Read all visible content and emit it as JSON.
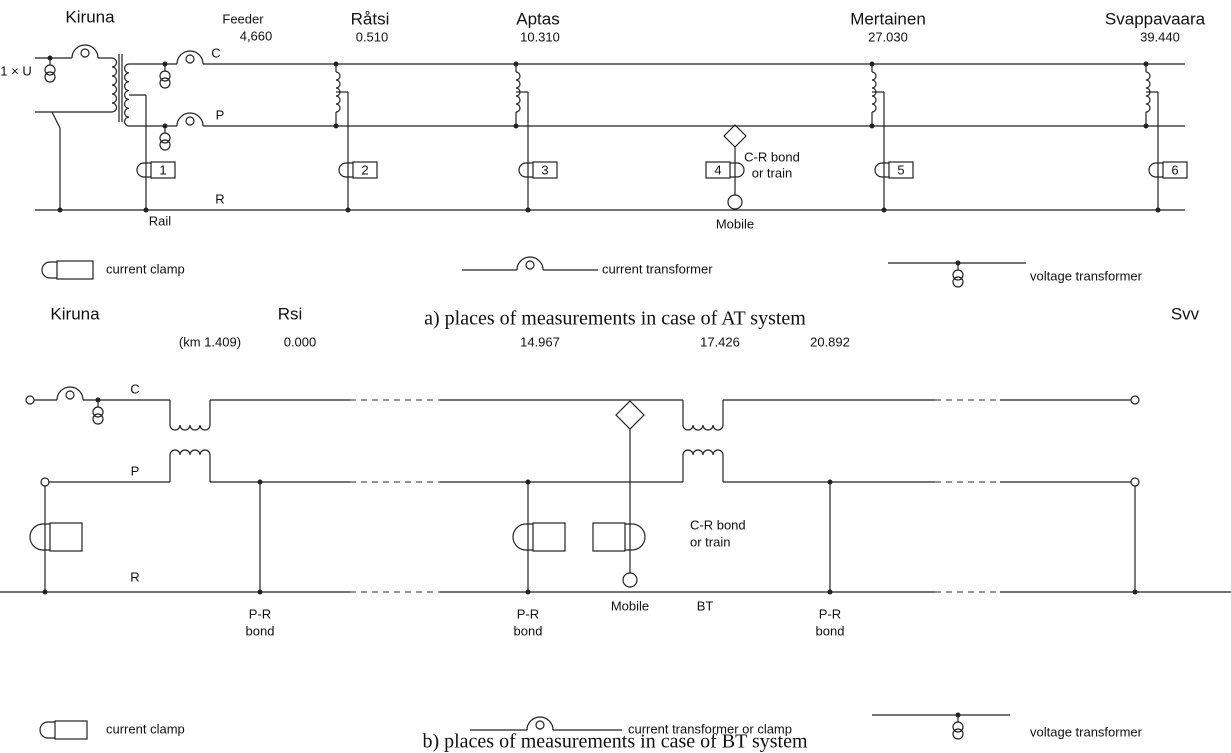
{
  "at_system": {
    "stations": [
      {
        "name": "Kiruna"
      },
      {
        "name": "Råtsi",
        "km": "0.510"
      },
      {
        "name": "Aptas",
        "km": "10.310"
      },
      {
        "name": "Mertainen",
        "km": "27.030"
      },
      {
        "name": "Svappavaara",
        "km": "39.440"
      }
    ],
    "feeder": {
      "label": "Feeder",
      "km": "4,660"
    },
    "source_label": "1 × U",
    "conductors": {
      "c": "C",
      "p": "P",
      "r": "R"
    },
    "rail_label": "Rail",
    "clamps": [
      "1",
      "2",
      "3",
      "4",
      "5",
      "6"
    ],
    "mobile": {
      "bond_line1": "C-R bond",
      "bond_line2": "or train",
      "label": "Mobile"
    },
    "legend": {
      "clamp": "current clamp",
      "ct": "current transformer",
      "vt": "voltage transformer"
    },
    "caption": "a) places of measurements in case of AT system"
  },
  "bt_system": {
    "stations": {
      "left": "Kiruna",
      "mid": "Rsi",
      "right": "Svv"
    },
    "positions": [
      "(km 1.409)",
      "0.000",
      "14.967",
      "17.426",
      "20.892"
    ],
    "conductors": {
      "c": "C",
      "p": "P",
      "r": "R"
    },
    "pr_bonds": [
      {
        "line1": "P-R",
        "line2": "bond"
      },
      {
        "line1": "P-R",
        "line2": "bond"
      },
      {
        "line1": "P-R",
        "line2": "bond"
      }
    ],
    "mobile": {
      "bond_line1": "C-R bond",
      "bond_line2": "or train",
      "label": "Mobile"
    },
    "bt_label": "BT",
    "legend": {
      "clamp": "current clamp",
      "ct": "current transformer or clamp",
      "vt": "voltage transformer"
    },
    "caption": "b) places of measurements in case of BT system"
  }
}
